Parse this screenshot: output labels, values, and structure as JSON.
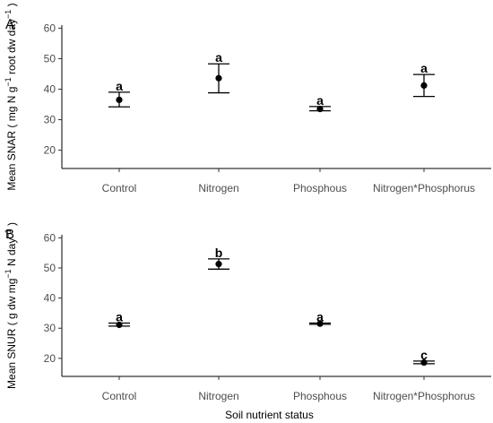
{
  "chart_data": [
    {
      "type": "scatter",
      "panel_label": "A",
      "categories": [
        "Control",
        "Nitrogen",
        "Phosphous",
        "Nitrogen*Phosphorus"
      ],
      "ylabel": "Mean SNAR (mg N g⁻¹ root dw day⁻¹)",
      "ylabel_parts": {
        "pre": "Mean SNAR ( mg N g",
        "sup1": "−1",
        "mid": " root dw day",
        "sup2": "−1",
        "post": " )"
      },
      "xlabel": "",
      "ylim": [
        14,
        61
      ],
      "yticks": [
        20,
        30,
        40,
        50,
        60
      ],
      "points": [
        {
          "mean": 36.5,
          "lower": 34.2,
          "upper": 39.0,
          "letter": "a"
        },
        {
          "mean": 43.6,
          "lower": 38.8,
          "upper": 48.3,
          "letter": "a"
        },
        {
          "mean": 33.5,
          "lower": 32.9,
          "upper": 34.3,
          "letter": "a"
        },
        {
          "mean": 41.2,
          "lower": 37.6,
          "upper": 44.8,
          "letter": "a"
        }
      ],
      "grid": false
    },
    {
      "type": "scatter",
      "panel_label": "B",
      "categories": [
        "Control",
        "Nitrogen",
        "Phosphous",
        "Nitrogen*Phosphorus"
      ],
      "ylabel": "Mean SNUR (g dw mg⁻¹ N day⁻¹)",
      "ylabel_parts": {
        "pre": "Mean SNUR ( g dw mg",
        "sup1": "−1",
        "mid": " N day",
        "sup2": "−1",
        "post": " )"
      },
      "xlabel": "Soil nutrient status",
      "ylim": [
        14,
        61
      ],
      "yticks": [
        20,
        30,
        40,
        50,
        60
      ],
      "points": [
        {
          "mean": 31.1,
          "lower": 30.7,
          "upper": 31.7,
          "letter": "a"
        },
        {
          "mean": 51.3,
          "lower": 49.6,
          "upper": 53.0,
          "letter": "b"
        },
        {
          "mean": 31.5,
          "lower": 31.3,
          "upper": 31.7,
          "letter": "a"
        },
        {
          "mean": 18.6,
          "lower": 18.2,
          "upper": 19.1,
          "letter": "c"
        }
      ],
      "grid": false
    }
  ]
}
